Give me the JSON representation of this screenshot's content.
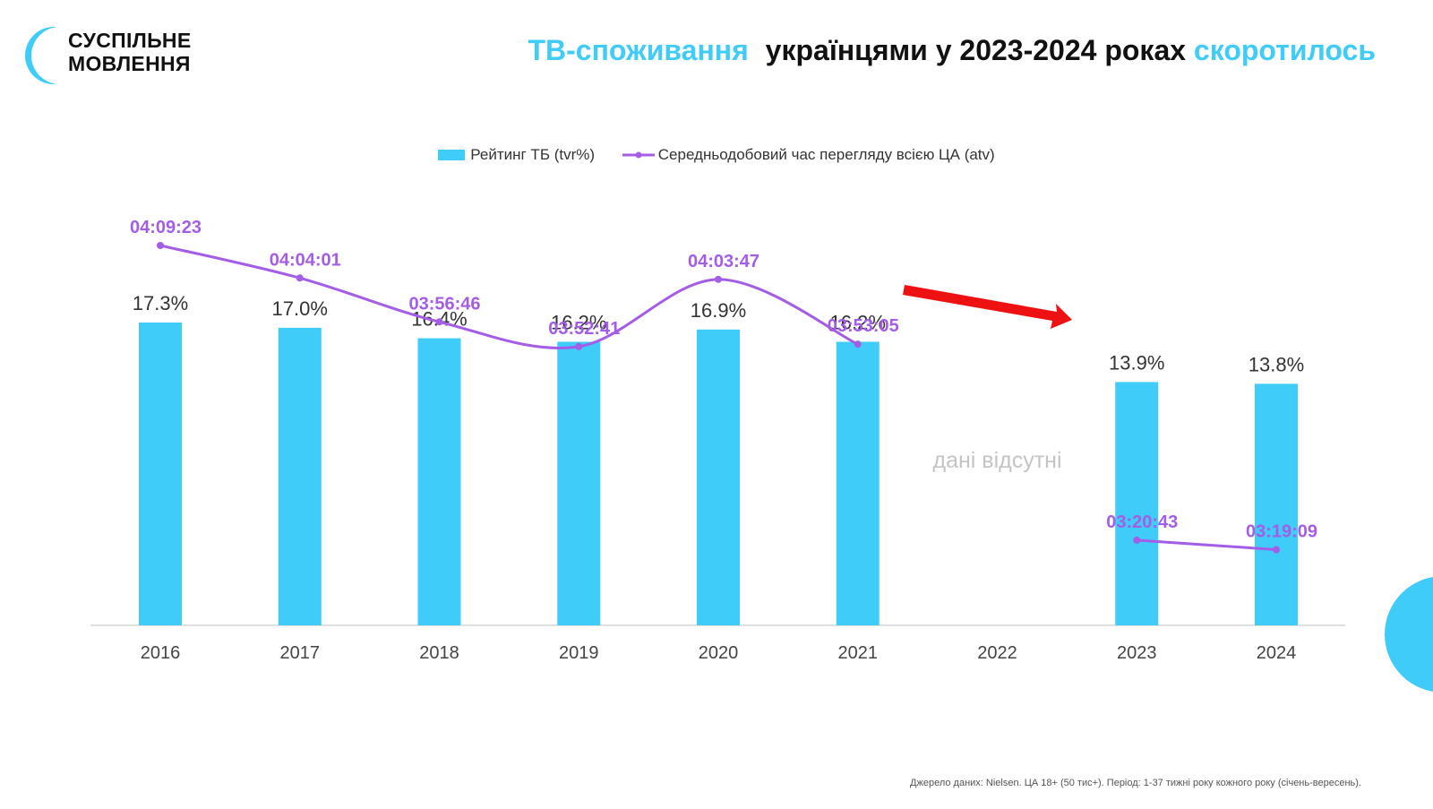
{
  "logo": {
    "line1": "СУСПІЛЬНЕ",
    "line2": "МОВЛЕННЯ"
  },
  "title": {
    "part1": "ТВ-споживання",
    "part2": "українцями у 2023-2024 роках",
    "part3": "скоротилось"
  },
  "colors": {
    "accent": "#3fccf9",
    "line": "#a45de6",
    "arrow": "#ee1111"
  },
  "chart_data": {
    "type": "bar",
    "categories": [
      "2016",
      "2017",
      "2018",
      "2019",
      "2020",
      "2021",
      "2022",
      "2023",
      "2024"
    ],
    "series": [
      {
        "name": "Рейтинг ТБ (tvr%)",
        "type": "bar",
        "values": [
          17.3,
          17.0,
          16.4,
          16.2,
          16.9,
          16.2,
          null,
          13.9,
          13.8
        ],
        "labels": [
          "17.3%",
          "17.0%",
          "16.4%",
          "16.2%",
          "16.9%",
          "16.2%",
          null,
          "13.9%",
          "13.8%"
        ]
      },
      {
        "name": "Середньодобовий час перегляду всією ЦА (atv)",
        "type": "line",
        "values": [
          "04:09:23",
          "04:04:01",
          "03:56:46",
          "03:52:41",
          "04:03:47",
          "03:53:05",
          null,
          "03:20:43",
          "03:19:09"
        ]
      }
    ],
    "annotation": "дані відсутні",
    "legend_position": "top-center"
  },
  "source": "Джерело даних: Nielsen. ЦА 18+ (50 тис+). Період: 1-37 тижні року кожного року (січень-вересень)."
}
